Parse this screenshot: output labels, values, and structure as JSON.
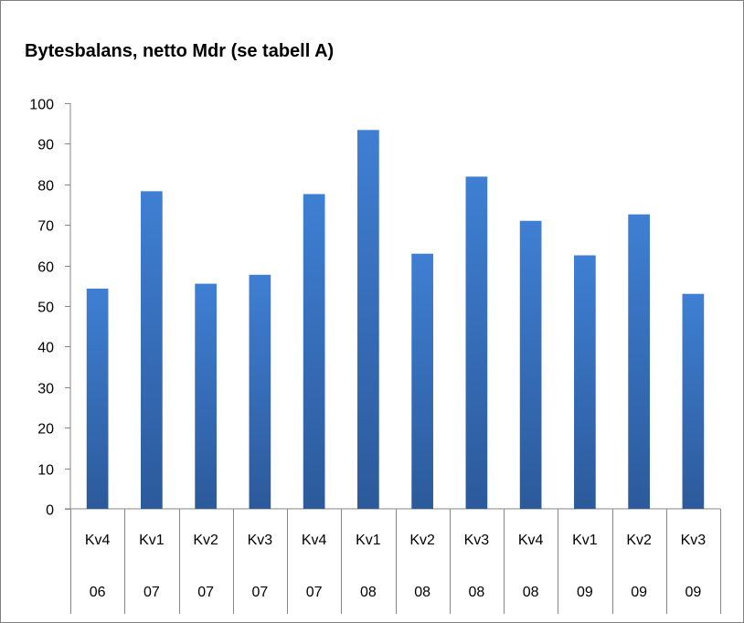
{
  "chart_data": {
    "type": "bar",
    "title": "Bytesbalans, netto Mdr (se tabell A)",
    "categories": [
      [
        "Kv4",
        "06"
      ],
      [
        "Kv1",
        "07"
      ],
      [
        "Kv2",
        "07"
      ],
      [
        "Kv3",
        "07"
      ],
      [
        "Kv4",
        "07"
      ],
      [
        "Kv1",
        "08"
      ],
      [
        "Kv2",
        "08"
      ],
      [
        "Kv3",
        "08"
      ],
      [
        "Kv4",
        "08"
      ],
      [
        "Kv1",
        "09"
      ],
      [
        "Kv2",
        "09"
      ],
      [
        "Kv3",
        "09"
      ]
    ],
    "values": [
      54.3,
      78.3,
      55.5,
      57.7,
      77.6,
      93.4,
      62.9,
      81.9,
      71.0,
      62.5,
      72.6,
      53.0
    ],
    "ylim": [
      0,
      100
    ],
    "yticks": [
      "0",
      "10",
      "20",
      "30",
      "40",
      "50",
      "60",
      "70",
      "80",
      "90",
      "100"
    ],
    "grid": false,
    "legend": "none",
    "colors": {
      "bar_top": "#3f7fd3",
      "bar_bottom": "#2c5a9b",
      "axis": "#868686"
    }
  }
}
